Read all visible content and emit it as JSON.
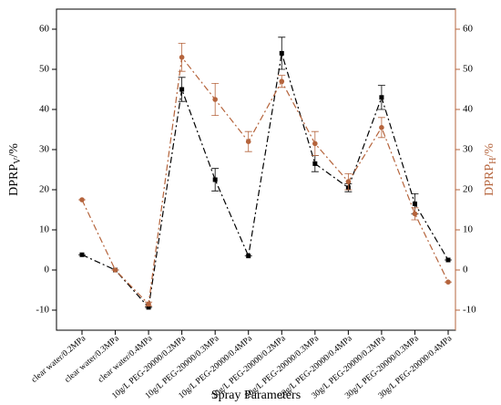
{
  "chart_data": {
    "type": "line",
    "x_label": "Spray Parameters",
    "y_label": {
      "main": "DPRP",
      "sub": "V",
      "unit": "/%"
    },
    "y2_label": {
      "main": "DPRP",
      "sub": "H",
      "unit": "/%"
    },
    "categories": [
      "clear water/0.2MPa",
      "clear water/0.3MPa",
      "clear water/0.4MPa",
      "10g/L PEG-20000/0.2MPa",
      "10g/L PEG-20000/0.3MPa",
      "10g/L PEG-20000/0.4MPa",
      "20g/L PEG-20000/0.2MPa",
      "20g/L PEG-20000/0.3MPa",
      "20g/L PEG-20000/0.4MPa",
      "30g/L PEG-20000/0.2MPa",
      "30g/L PEG-20000/0.3MPa",
      "30g/L PEG-20000/0.4MPa"
    ],
    "series": [
      {
        "color": "#000000",
        "marker": "square",
        "values": [
          3.8,
          0,
          -9.3,
          45,
          22.5,
          3.5,
          54,
          26.5,
          20.5,
          43,
          16.5,
          2.5
        ],
        "errors": [
          0,
          0,
          0,
          3,
          2.8,
          0,
          4,
          2,
          1,
          3,
          2.5,
          0
        ]
      },
      {
        "color": "#b5643c",
        "marker": "circle",
        "axis": "y2",
        "values": [
          17.5,
          0,
          -8.5,
          53,
          42.5,
          32,
          47,
          31.5,
          22,
          35.5,
          14,
          -3
        ],
        "errors": [
          0,
          0,
          0.5,
          3.5,
          4,
          2.5,
          1.5,
          3,
          2,
          2.5,
          1.5,
          0
        ]
      }
    ],
    "ylim": [
      -15,
      65
    ],
    "yticks": [
      -10,
      0,
      10,
      20,
      30,
      40,
      50,
      60
    ],
    "y2lim": [
      -15,
      65
    ],
    "y2ticks": [
      -10,
      0,
      10,
      20,
      30,
      40,
      50,
      60
    ],
    "y2_color": "#b5643c"
  }
}
